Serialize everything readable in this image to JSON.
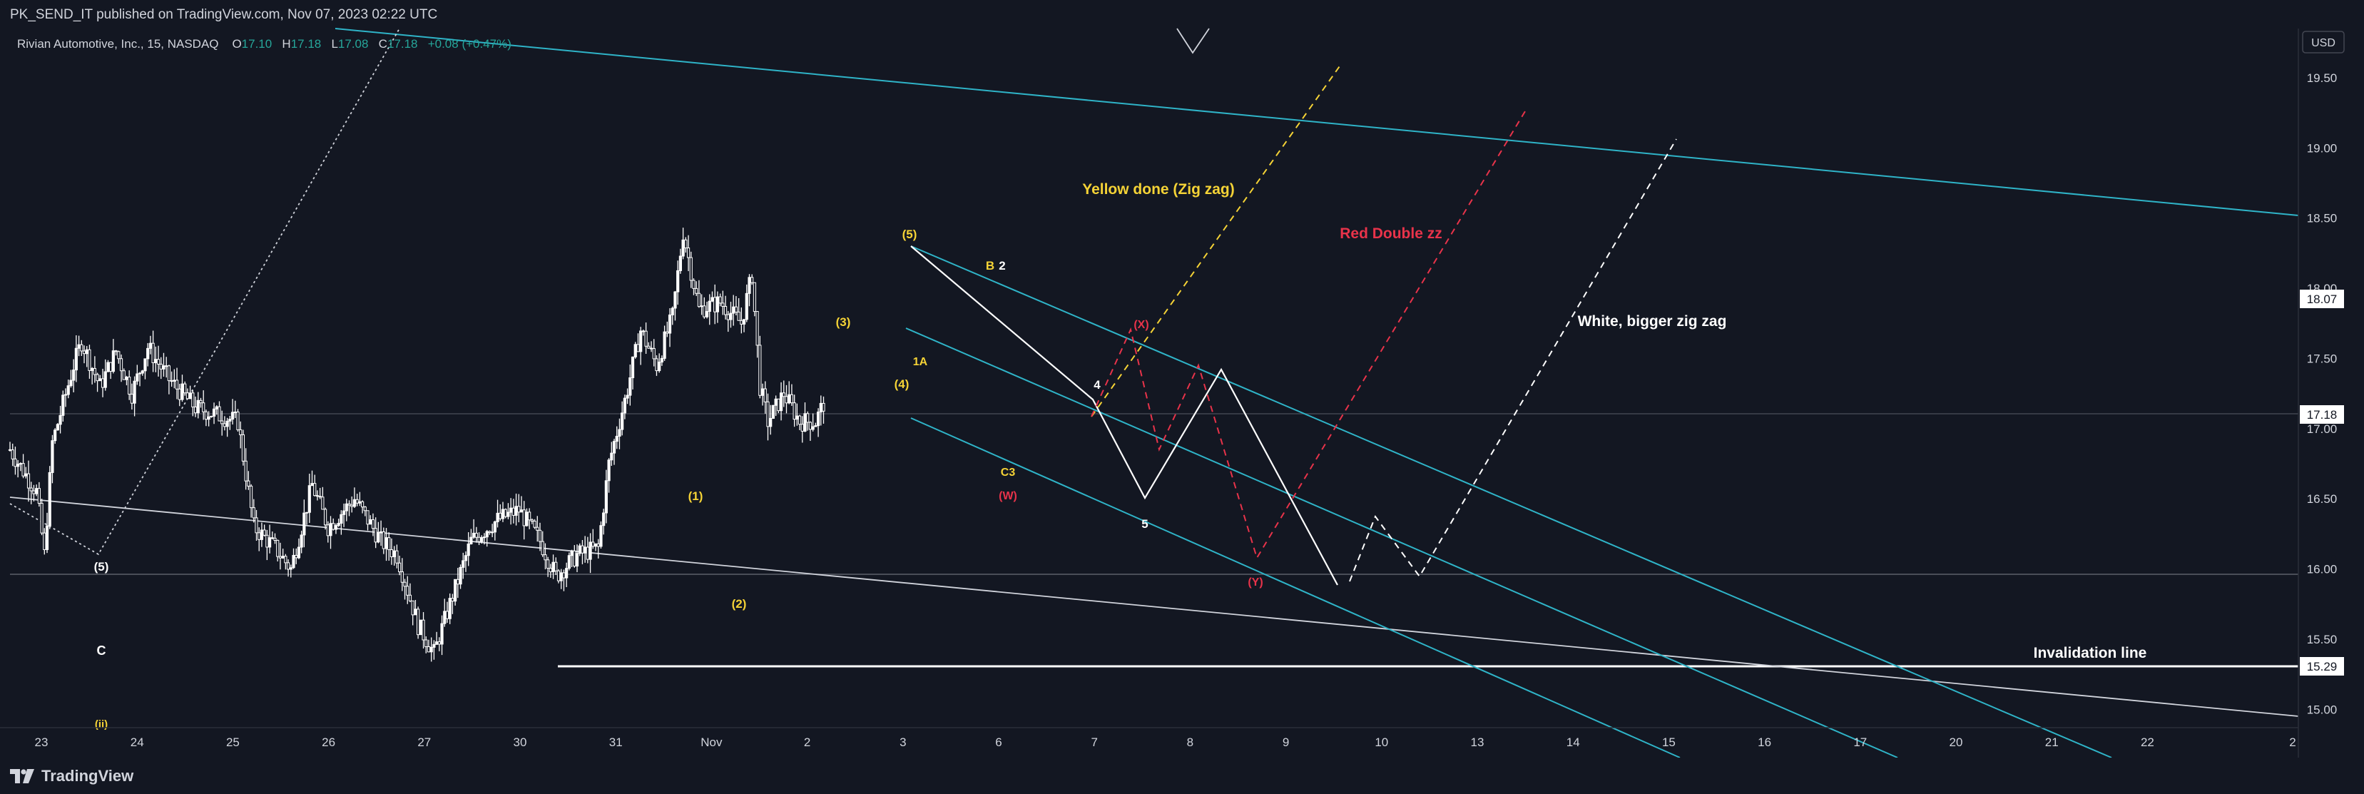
{
  "header": {
    "published": "PK_SEND_IT published on TradingView.com, Nov 07, 2023 02:22 UTC",
    "symbol": "Rivian Automotive, Inc., 15, NASDAQ",
    "o_label": "O",
    "o_value": "17.10",
    "h_label": "H",
    "h_value": "17.18",
    "l_label": "L",
    "l_value": "17.08",
    "c_label": "C",
    "c_value": "17.18",
    "change": "+0.08 (+0.47%)"
  },
  "footer": {
    "brand": "TradingView"
  },
  "colors": {
    "background": "#131722",
    "up": "#ffffff",
    "cyan": "#2fb4c8",
    "yellow": "#f5d336",
    "red": "#e8334a",
    "white": "#ffffff",
    "axis_text": "#d1d4dc",
    "badge": "#ffffff",
    "badge_text": "#131722"
  },
  "chart_data": {
    "type": "candlestick",
    "timeframe": "15",
    "currency": "USD",
    "y_ticks": [
      "15.00",
      "15.50",
      "16.00",
      "16.50",
      "17.00",
      "17.50",
      "18.00",
      "18.50",
      "19.00",
      "19.50"
    ],
    "y_range": [
      14.87,
      19.85
    ],
    "x_ticks": [
      "23",
      "24",
      "25",
      "26",
      "27",
      "30",
      "31",
      "Nov",
      "2",
      "3",
      "6",
      "7",
      "8",
      "9",
      "10",
      "13",
      "14",
      "15",
      "16",
      "17",
      "20",
      "21",
      "22",
      "2"
    ],
    "price_badges": [
      "18.07",
      "17.18",
      "15.29"
    ],
    "price_path": [
      {
        "t": 0,
        "p": 16.85
      },
      {
        "t": 0.5,
        "p": 16.55
      },
      {
        "t": 0.65,
        "p": 16.1
      },
      {
        "t": 0.8,
        "p": 16.9
      },
      {
        "t": 1.2,
        "p": 17.45
      },
      {
        "t": 1.35,
        "p": 17.62
      },
      {
        "t": 1.7,
        "p": 17.3
      },
      {
        "t": 2.0,
        "p": 17.55
      },
      {
        "t": 2.3,
        "p": 17.25
      },
      {
        "t": 2.6,
        "p": 17.58
      },
      {
        "t": 3.0,
        "p": 17.35
      },
      {
        "t": 3.5,
        "p": 17.15
      },
      {
        "t": 4.3,
        "p": 17.05
      },
      {
        "t": 4.6,
        "p": 16.3
      },
      {
        "t": 5.0,
        "p": 16.15
      },
      {
        "t": 5.3,
        "p": 16.0
      },
      {
        "t": 5.7,
        "p": 16.6
      },
      {
        "t": 6.0,
        "p": 16.3
      },
      {
        "t": 6.5,
        "p": 16.5
      },
      {
        "t": 7.0,
        "p": 16.2
      },
      {
        "t": 7.3,
        "p": 16.1
      },
      {
        "t": 7.7,
        "p": 15.6
      },
      {
        "t": 8.0,
        "p": 15.4
      },
      {
        "t": 8.3,
        "p": 15.75
      },
      {
        "t": 8.7,
        "p": 16.2
      },
      {
        "t": 9.2,
        "p": 16.35
      },
      {
        "t": 9.6,
        "p": 16.42
      },
      {
        "t": 10.0,
        "p": 16.2
      },
      {
        "t": 10.3,
        "p": 15.95
      },
      {
        "t": 10.7,
        "p": 16.1
      },
      {
        "t": 11.1,
        "p": 16.15
      },
      {
        "t": 11.3,
        "p": 16.75
      },
      {
        "t": 11.6,
        "p": 17.2
      },
      {
        "t": 11.9,
        "p": 17.7
      },
      {
        "t": 12.2,
        "p": 17.45
      },
      {
        "t": 12.5,
        "p": 17.8
      },
      {
        "t": 12.7,
        "p": 18.4
      },
      {
        "t": 13.0,
        "p": 17.85
      },
      {
        "t": 13.4,
        "p": 17.9
      },
      {
        "t": 13.8,
        "p": 17.75
      },
      {
        "t": 14.0,
        "p": 18.1
      },
      {
        "t": 14.15,
        "p": 17.3
      },
      {
        "t": 14.3,
        "p": 17.05
      },
      {
        "t": 14.6,
        "p": 17.25
      },
      {
        "t": 14.9,
        "p": 17.05
      },
      {
        "t": 15.2,
        "p": 17.05
      },
      {
        "t": 15.35,
        "p": 17.18
      }
    ],
    "annotations": {
      "y_zigzag": "Yellow done (Zig zag)",
      "r_double": "Red Double zz",
      "w_bigger": "White, bigger zig zag",
      "invalidation": "Invalidation line",
      "wave_5_left": "(5)",
      "wave_c": "C",
      "wave_ii": "(ii)",
      "wave_1": "(1)",
      "wave_2": "(2)",
      "wave_3": "(3)",
      "wave_4": "(4)",
      "wave_5_top": "(5)",
      "wave_1a": "1A",
      "wave_b": "B",
      "wave_2w": "2",
      "wave_c3": "C3",
      "wave_w": "(W)",
      "wave_x": "(X)",
      "wave_y": "(Y)",
      "wave_4w": "4",
      "wave_5w": "5"
    }
  }
}
